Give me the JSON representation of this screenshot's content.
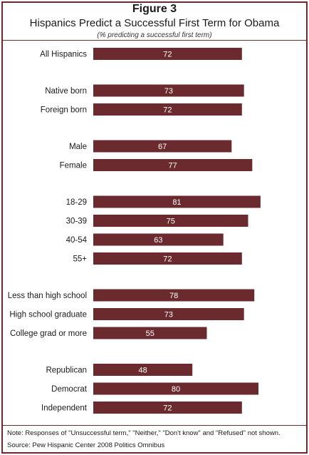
{
  "header": {
    "figure_label": "Figure 3",
    "title": "Hispanics Predict a Successful First Term for Obama",
    "subtitle": "(% predicting a successful first term)"
  },
  "footer": {
    "note": "Note: Responses of  \"Unsuccessful term,\" \"Neither,\" \"Don't know\" and \"Refused\" not shown.",
    "source": "Source: Pew Hispanic Center 2008 Politics Omnibus"
  },
  "colors": {
    "bar": "#6b2b2e",
    "bar_label": "#ffffff",
    "frame": "#6b2b2e"
  },
  "chart_data": {
    "type": "bar",
    "orientation": "horizontal",
    "xlim": [
      0,
      100
    ],
    "grid": false,
    "groups": [
      {
        "categories": [
          "All Hispanics"
        ],
        "values": [
          72
        ]
      },
      {
        "categories": [
          "Native born",
          "Foreign born"
        ],
        "values": [
          73,
          72
        ]
      },
      {
        "categories": [
          "Male",
          "Female"
        ],
        "values": [
          67,
          77
        ]
      },
      {
        "categories": [
          "18-29",
          "30-39",
          "40-54",
          "55+"
        ],
        "values": [
          81,
          75,
          63,
          72
        ]
      },
      {
        "categories": [
          "Less than high school",
          "High school graduate",
          "College grad or more"
        ],
        "values": [
          78,
          73,
          55
        ]
      },
      {
        "categories": [
          "Republican",
          "Democrat",
          "Independent"
        ],
        "values": [
          48,
          80,
          72
        ]
      }
    ]
  }
}
